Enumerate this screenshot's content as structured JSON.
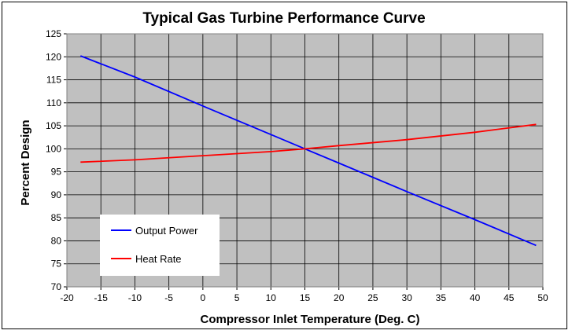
{
  "chart_data": {
    "type": "line",
    "title": "Typical Gas Turbine Performance Curve",
    "xlabel": "Compressor Inlet Temperature (Deg. C)",
    "ylabel": "Percent Design",
    "xlim": [
      -20,
      50
    ],
    "ylim": [
      70,
      125
    ],
    "x_ticks": [
      "-20",
      "-15",
      "-10",
      "-5",
      "0",
      "5",
      "10",
      "15",
      "20",
      "25",
      "30",
      "35",
      "40",
      "45",
      "50"
    ],
    "y_ticks": [
      "70",
      "75",
      "80",
      "85",
      "90",
      "95",
      "100",
      "105",
      "110",
      "115",
      "120",
      "125"
    ],
    "grid": true,
    "legend_position": "bottom-left",
    "series": [
      {
        "name": "Output Power",
        "color": "#0000ff",
        "x": [
          -18,
          -10,
          0,
          10,
          15,
          20,
          30,
          40,
          49
        ],
        "y": [
          120.2,
          115.6,
          109.3,
          103.1,
          100,
          96.9,
          90.7,
          84.6,
          79.0
        ]
      },
      {
        "name": "Heat Rate",
        "color": "#ff0000",
        "x": [
          -18,
          -10,
          0,
          10,
          15,
          20,
          30,
          40,
          49
        ],
        "y": [
          97.1,
          97.6,
          98.5,
          99.4,
          100,
          100.7,
          102.0,
          103.6,
          105.3
        ]
      }
    ]
  }
}
